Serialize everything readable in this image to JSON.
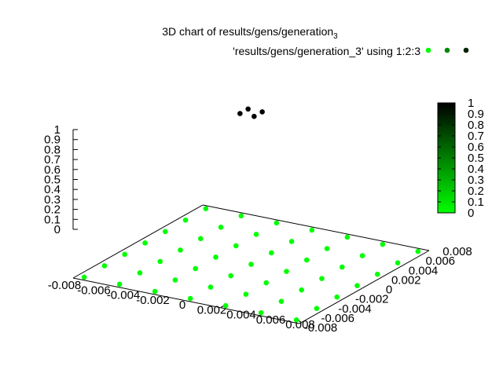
{
  "chart_data": {
    "type": "scatter",
    "title": "3D chart of results/gens/generation",
    "title_subscript": "3",
    "legend": {
      "label": "'results/gens/generation_3' using 1:2:3",
      "placement": "top-right",
      "marker_colors": [
        "#00ff00",
        "#008800",
        "#002200"
      ]
    },
    "x_ticks": [
      "-0.008",
      "-0.006",
      "-0.004",
      "-0.002",
      "0",
      "0.002",
      "0.004",
      "0.006",
      "0.008"
    ],
    "y_ticks": [
      "-0.008",
      "-0.006",
      "-0.004",
      "-0.002",
      "0",
      "0.002",
      "0.004",
      "0.006",
      "0.008"
    ],
    "z_ticks": [
      "0",
      "0.1",
      "0.2",
      "0.3",
      "0.4",
      "0.5",
      "0.6",
      "0.7",
      "0.8",
      "0.9",
      "1"
    ],
    "colorbar_ticks": [
      "0",
      "0.1",
      "0.2",
      "0.3",
      "0.4",
      "0.5",
      "0.6",
      "0.7",
      "0.8",
      "0.9",
      "1"
    ],
    "colorbar_range": [
      0,
      1
    ],
    "colorbar_colors": {
      "low": "#00ff00",
      "high": "#000000"
    },
    "xlim": [
      -0.008,
      0.008
    ],
    "ylim": [
      -0.008,
      0.008
    ],
    "zlim": [
      0,
      1
    ],
    "grid_values": [
      -0.0075,
      -0.005,
      -0.0025,
      0,
      0.0025,
      0.005,
      0.0075
    ],
    "high_points": [
      {
        "x": -0.0005,
        "y": -0.0005,
        "z": 1
      },
      {
        "x": -0.0005,
        "y": 0.0005,
        "z": 1
      },
      {
        "x": 0.0005,
        "y": -0.0005,
        "z": 1
      },
      {
        "x": 0.0005,
        "y": 0.0005,
        "z": 1
      }
    ],
    "base_z": 0,
    "grid": false
  }
}
